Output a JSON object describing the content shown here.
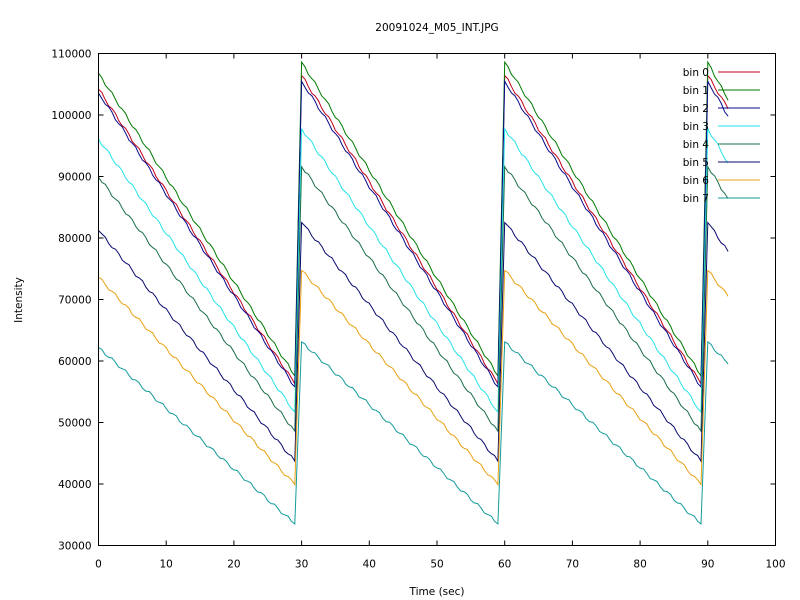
{
  "chart_data": {
    "type": "line",
    "title": "20091024_M05_INT.JPG",
    "xlabel": "Time (sec)",
    "ylabel": "Intensity",
    "xlim": [
      0,
      100
    ],
    "ylim": [
      30000,
      110000
    ],
    "xticks": [
      0,
      10,
      20,
      30,
      40,
      50,
      60,
      70,
      80,
      90,
      100
    ],
    "yticks": [
      30000,
      40000,
      50000,
      60000,
      70000,
      80000,
      90000,
      100000,
      110000
    ],
    "xtick_labels": [
      "0",
      "10",
      "20",
      "30",
      "40",
      "50",
      "60",
      "70",
      "80",
      "90",
      "100"
    ],
    "ytick_labels": [
      "30000",
      "40000",
      "50000",
      "60000",
      "70000",
      "80000",
      "90000",
      "100000",
      "110000"
    ],
    "grid": false,
    "legend_position": "top-right",
    "series": [
      {
        "name": "bin 0",
        "color": "#c0001a",
        "start": 104200,
        "end": 56300,
        "peak": 106400,
        "tail_end": 101000
      },
      {
        "name": "bin 1",
        "color": "#007a00",
        "start": 106800,
        "end": 57600,
        "peak": 108600,
        "tail_end": 102400
      },
      {
        "name": "bin 2",
        "color": "#0a0a8c",
        "start": 103600,
        "end": 55800,
        "peak": 105500,
        "tail_end": 99800
      },
      {
        "name": "bin 3",
        "color": "#22e2e8",
        "start": 96100,
        "end": 51700,
        "peak": 97800,
        "tail_end": 92200
      },
      {
        "name": "bin 4",
        "color": "#1a6e46",
        "start": 89900,
        "end": 48600,
        "peak": 91600,
        "tail_end": 86400
      },
      {
        "name": "bin 5",
        "color": "#0a0a6e",
        "start": 81200,
        "end": 43700,
        "peak": 82500,
        "tail_end": 77800
      },
      {
        "name": "bin 6",
        "color": "#e8a010",
        "start": 73600,
        "end": 39900,
        "peak": 74700,
        "tail_end": 70500
      },
      {
        "name": "bin 7",
        "color": "#139b9b",
        "start": 62200,
        "end": 33500,
        "peak": 63100,
        "tail_end": 59500
      }
    ],
    "cycles": [
      {
        "t_start": 0,
        "t_end": 29
      },
      {
        "t_start": 30,
        "t_end": 59
      },
      {
        "t_start": 60,
        "t_end": 89
      },
      {
        "t_start": 90,
        "t_end": 93
      }
    ]
  }
}
